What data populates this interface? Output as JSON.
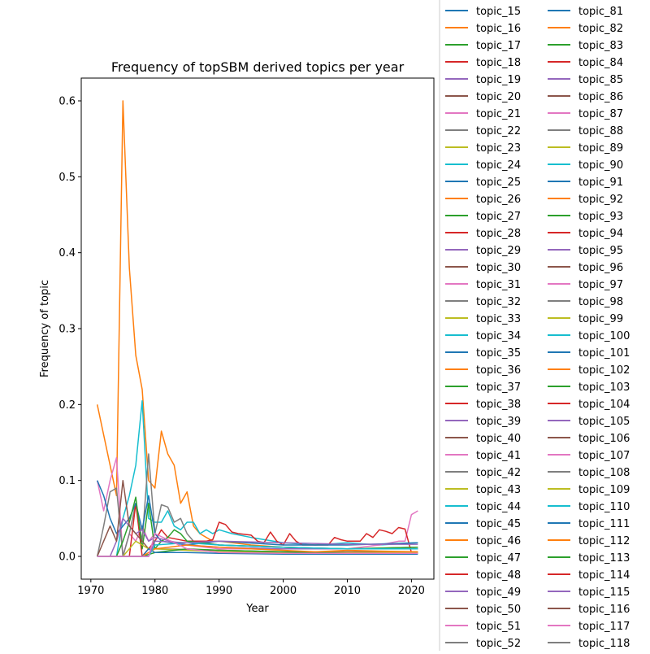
{
  "chart_data": {
    "type": "line",
    "title": "Frequency of topSBM derived topics per year",
    "xlabel": "Year",
    "ylabel": "Frequency of topic",
    "xlim": [
      1968.5,
      2023.5
    ],
    "ylim": [
      -0.03,
      0.63
    ],
    "x_ticks": [
      1970,
      1980,
      1990,
      2000,
      2010,
      2020
    ],
    "y_ticks": [
      0.0,
      0.1,
      0.2,
      0.3,
      0.4,
      0.5,
      0.6
    ],
    "grid": false,
    "legend_location": "outside right, two columns, clipped at top and bottom",
    "palette": [
      "#1f77b4",
      "#ff7f0e",
      "#2ca02c",
      "#d62728",
      "#9467bd",
      "#8c564b",
      "#e377c2",
      "#7f7f7f",
      "#bcbd22",
      "#17becf"
    ],
    "legend_columns": [
      [
        "topic_15",
        "topic_16",
        "topic_17",
        "topic_18",
        "topic_19",
        "topic_20",
        "topic_21",
        "topic_22",
        "topic_23",
        "topic_24",
        "topic_25",
        "topic_26",
        "topic_27",
        "topic_28",
        "topic_29",
        "topic_30",
        "topic_31",
        "topic_32",
        "topic_33",
        "topic_34",
        "topic_35",
        "topic_36",
        "topic_37",
        "topic_38",
        "topic_39",
        "topic_40",
        "topic_41",
        "topic_42",
        "topic_43",
        "topic_44",
        "topic_45",
        "topic_46",
        "topic_47",
        "topic_48",
        "topic_49",
        "topic_50",
        "topic_51",
        "topic_52"
      ],
      [
        "topic_81",
        "topic_82",
        "topic_83",
        "topic_84",
        "topic_85",
        "topic_86",
        "topic_87",
        "topic_88",
        "topic_89",
        "topic_90",
        "topic_91",
        "topic_92",
        "topic_93",
        "topic_94",
        "topic_95",
        "topic_96",
        "topic_97",
        "topic_98",
        "topic_99",
        "topic_100",
        "topic_101",
        "topic_102",
        "topic_103",
        "topic_104",
        "topic_105",
        "topic_106",
        "topic_107",
        "topic_108",
        "topic_109",
        "topic_110",
        "topic_111",
        "topic_112",
        "topic_113",
        "topic_114",
        "topic_115",
        "topic_116",
        "topic_117",
        "topic_118"
      ]
    ],
    "series": [
      {
        "color": "#ff7f0e",
        "x": [
          1971,
          1972,
          1973,
          1974,
          1975,
          1976,
          1977,
          1978,
          1979,
          1980,
          1981,
          1982,
          1983,
          1984,
          1985,
          1986,
          1987,
          1988,
          1989,
          1990,
          1995,
          2000,
          2005,
          2010,
          2015,
          2021
        ],
        "y": [
          0.2,
          0.16,
          0.12,
          0.08,
          0.6,
          0.38,
          0.265,
          0.22,
          0.1,
          0.09,
          0.165,
          0.135,
          0.12,
          0.07,
          0.085,
          0.04,
          0.03,
          0.025,
          0.02,
          0.02,
          0.015,
          0.012,
          0.01,
          0.01,
          0.01,
          0.01
        ]
      },
      {
        "color": "#17becf",
        "x": [
          1971,
          1972,
          1973,
          1974,
          1975,
          1976,
          1977,
          1978,
          1979,
          1980,
          1981,
          1982,
          1983,
          1984,
          1985,
          1986,
          1987,
          1988,
          1989,
          1990,
          1992,
          1995,
          2000,
          2005,
          2010,
          2015,
          2021
        ],
        "y": [
          0.0,
          0.0,
          0.0,
          0.0,
          0.05,
          0.08,
          0.12,
          0.205,
          0.05,
          0.045,
          0.045,
          0.06,
          0.04,
          0.035,
          0.045,
          0.045,
          0.03,
          0.035,
          0.03,
          0.035,
          0.03,
          0.025,
          0.018,
          0.015,
          0.018,
          0.015,
          0.018
        ]
      },
      {
        "color": "#e377c2",
        "x": [
          1971,
          1972,
          1973,
          1974,
          1975,
          1976,
          1977,
          1978,
          1979,
          1980,
          1981,
          1985,
          1990,
          2000,
          2010,
          2015,
          2018,
          2019,
          2020,
          2021
        ],
        "y": [
          0.1,
          0.06,
          0.1,
          0.13,
          0.0,
          0.03,
          0.02,
          0.04,
          0.02,
          0.03,
          0.02,
          0.015,
          0.01,
          0.01,
          0.01,
          0.015,
          0.02,
          0.02,
          0.055,
          0.06
        ]
      },
      {
        "color": "#7f7f7f",
        "x": [
          1971,
          1972,
          1973,
          1974,
          1975,
          1976,
          1977,
          1978,
          1979,
          1980,
          1981,
          1982,
          1983,
          1984,
          1985,
          1986,
          1990,
          2000,
          2010,
          2021
        ],
        "y": [
          0.0,
          0.04,
          0.085,
          0.09,
          0.0,
          0.03,
          0.07,
          0.02,
          0.135,
          0.03,
          0.068,
          0.065,
          0.045,
          0.05,
          0.03,
          0.02,
          0.015,
          0.012,
          0.01,
          0.012
        ]
      },
      {
        "color": "#d62728",
        "x": [
          1971,
          1975,
          1976,
          1977,
          1978,
          1980,
          1981,
          1982,
          1985,
          1988,
          1989,
          1990,
          1991,
          1992,
          1993,
          1995,
          1996,
          1997,
          1998,
          1999,
          2000,
          2001,
          2002,
          2003,
          2005,
          2007,
          2008,
          2009,
          2010,
          2011,
          2012,
          2013,
          2014,
          2015,
          2016,
          2017,
          2018,
          2019,
          2020,
          2021
        ],
        "y": [
          0.0,
          0.0,
          0.0,
          0.07,
          0.0,
          0.02,
          0.035,
          0.025,
          0.02,
          0.02,
          0.022,
          0.045,
          0.042,
          0.032,
          0.03,
          0.028,
          0.02,
          0.018,
          0.032,
          0.02,
          0.015,
          0.03,
          0.02,
          0.015,
          0.015,
          0.015,
          0.025,
          0.022,
          0.02,
          0.02,
          0.02,
          0.03,
          0.025,
          0.035,
          0.033,
          0.03,
          0.038,
          0.036,
          0.005,
          0.005
        ]
      },
      {
        "color": "#1f77b4",
        "x": [
          1971,
          1972,
          1973,
          1974,
          1975,
          1976,
          1977,
          1978,
          1979,
          1980,
          1981,
          1985,
          1990,
          2000,
          2010,
          2021
        ],
        "y": [
          0.1,
          0.08,
          0.05,
          0.03,
          0.04,
          0.05,
          0.07,
          0.035,
          0.08,
          0.03,
          0.02,
          0.015,
          0.02,
          0.015,
          0.015,
          0.018
        ]
      },
      {
        "color": "#2ca02c",
        "x": [
          1971,
          1974,
          1975,
          1976,
          1977,
          1978,
          1979,
          1980,
          1981,
          1982,
          1983,
          1984,
          1985,
          1990,
          2000,
          2010,
          2021
        ],
        "y": [
          0.0,
          0.0,
          0.02,
          0.045,
          0.078,
          0.01,
          0.07,
          0.01,
          0.02,
          0.025,
          0.035,
          0.03,
          0.02,
          0.015,
          0.012,
          0.01,
          0.012
        ]
      },
      {
        "color": "#9467bd",
        "x": [
          1971,
          1973,
          1974,
          1975,
          1976,
          1977,
          1978,
          1979,
          1980,
          1985,
          1990,
          2000,
          2010,
          2021
        ],
        "y": [
          0.0,
          0.0,
          0.02,
          0.05,
          0.04,
          0.03,
          0.035,
          0.02,
          0.025,
          0.015,
          0.012,
          0.01,
          0.01,
          0.01
        ]
      },
      {
        "color": "#8c564b",
        "x": [
          1971,
          1972,
          1973,
          1974,
          1975,
          1976,
          1977,
          1978,
          1979,
          1980,
          1990,
          2000,
          2010,
          2021
        ],
        "y": [
          0.0,
          0.02,
          0.04,
          0.02,
          0.1,
          0.04,
          0.03,
          0.02,
          0.01,
          0.01,
          0.008,
          0.006,
          0.006,
          0.006
        ]
      },
      {
        "color": "#bcbd22",
        "x": [
          1971,
          1975,
          1976,
          1977,
          1978,
          1979,
          1980,
          1985,
          1990,
          2000,
          2010,
          2021
        ],
        "y": [
          0.0,
          0.0,
          0.01,
          0.02,
          0.015,
          0.01,
          0.01,
          0.008,
          0.006,
          0.005,
          0.005,
          0.005
        ]
      },
      {
        "color": "#2ca02c",
        "x": [
          1971,
          1978,
          1980,
          1985,
          1990,
          2000,
          2005,
          2010,
          2015,
          2021
        ],
        "y": [
          0.0,
          0.0,
          0.005,
          0.01,
          0.008,
          0.006,
          0.005,
          0.004,
          0.004,
          0.004
        ]
      },
      {
        "color": "#1f77b4",
        "x": [
          1971,
          1978,
          1979,
          1980,
          1985,
          1990,
          2000,
          2010,
          2021
        ],
        "y": [
          0.0,
          0.0,
          0.01,
          0.005,
          0.005,
          0.004,
          0.003,
          0.003,
          0.003
        ]
      },
      {
        "color": "#ff7f0e",
        "x": [
          1971,
          1978,
          1980,
          1985,
          1990,
          1995,
          2000,
          2005,
          2010,
          2015,
          2021
        ],
        "y": [
          0.0,
          0.0,
          0.01,
          0.015,
          0.012,
          0.01,
          0.008,
          0.006,
          0.008,
          0.007,
          0.006
        ]
      },
      {
        "color": "#17becf",
        "x": [
          1971,
          1979,
          1980,
          1985,
          1990,
          2000,
          2010,
          2021
        ],
        "y": [
          0.0,
          0.0,
          0.015,
          0.018,
          0.015,
          0.012,
          0.01,
          0.01
        ]
      },
      {
        "color": "#9467bd",
        "x": [
          1971,
          1979,
          1980,
          1985,
          1990,
          2000,
          2010,
          2021
        ],
        "y": [
          0.0,
          0.0,
          0.02,
          0.018,
          0.02,
          0.018,
          0.016,
          0.016
        ]
      },
      {
        "color": "#e377c2",
        "x": [
          1971,
          1979,
          1980,
          1985,
          1990,
          2000,
          2010,
          2021
        ],
        "y": [
          0.0,
          0.0,
          0.03,
          0.01,
          0.005,
          0.004,
          0.004,
          0.004
        ]
      }
    ]
  }
}
